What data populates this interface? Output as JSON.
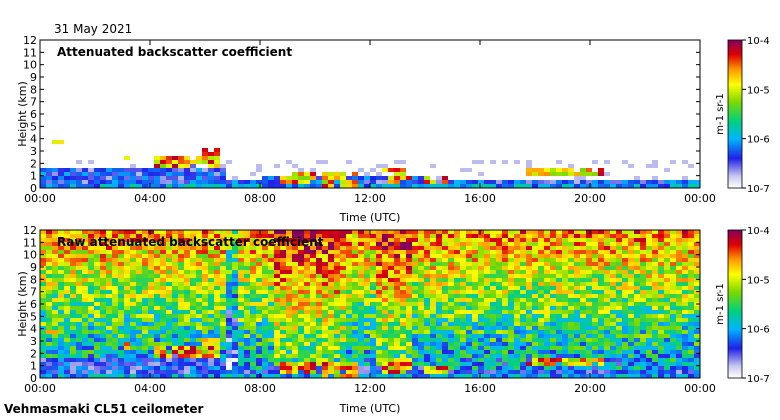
{
  "date": "31 May 2021",
  "footer": "Vehmasmaki CL51 ceilometer",
  "chart_data": [
    {
      "type": "heatmap",
      "title": "Attenuated backscatter coefficient",
      "xlabel": "Time (UTC)",
      "ylabel": "Height (km)",
      "xticks": [
        "00:00",
        "04:00",
        "08:00",
        "12:00",
        "16:00",
        "20:00",
        "00:00"
      ],
      "yticks": [
        "0",
        "1",
        "2",
        "3",
        "4",
        "5",
        "6",
        "7",
        "8",
        "9",
        "10",
        "11",
        "12"
      ],
      "ylim": [
        0,
        12
      ],
      "colorbar": {
        "ticks": [
          "10-7",
          "10-6",
          "10-5",
          "10-4"
        ],
        "unit": "m-1 sr-1"
      }
    },
    {
      "type": "heatmap",
      "title": "Raw attenuated backscatter coefficient",
      "xlabel": "Time (UTC)",
      "ylabel": "Height (km)",
      "xticks": [
        "00:00",
        "04:00",
        "08:00",
        "12:00",
        "16:00",
        "20:00",
        "00:00"
      ],
      "yticks": [
        "0",
        "1",
        "2",
        "3",
        "4",
        "5",
        "6",
        "7",
        "8",
        "9",
        "10",
        "11",
        "12"
      ],
      "ylim": [
        0,
        12
      ],
      "colorbar": {
        "ticks": [
          "10-7",
          "10-6",
          "10-5",
          "10-4"
        ],
        "unit": "m-1 sr-1"
      }
    }
  ]
}
